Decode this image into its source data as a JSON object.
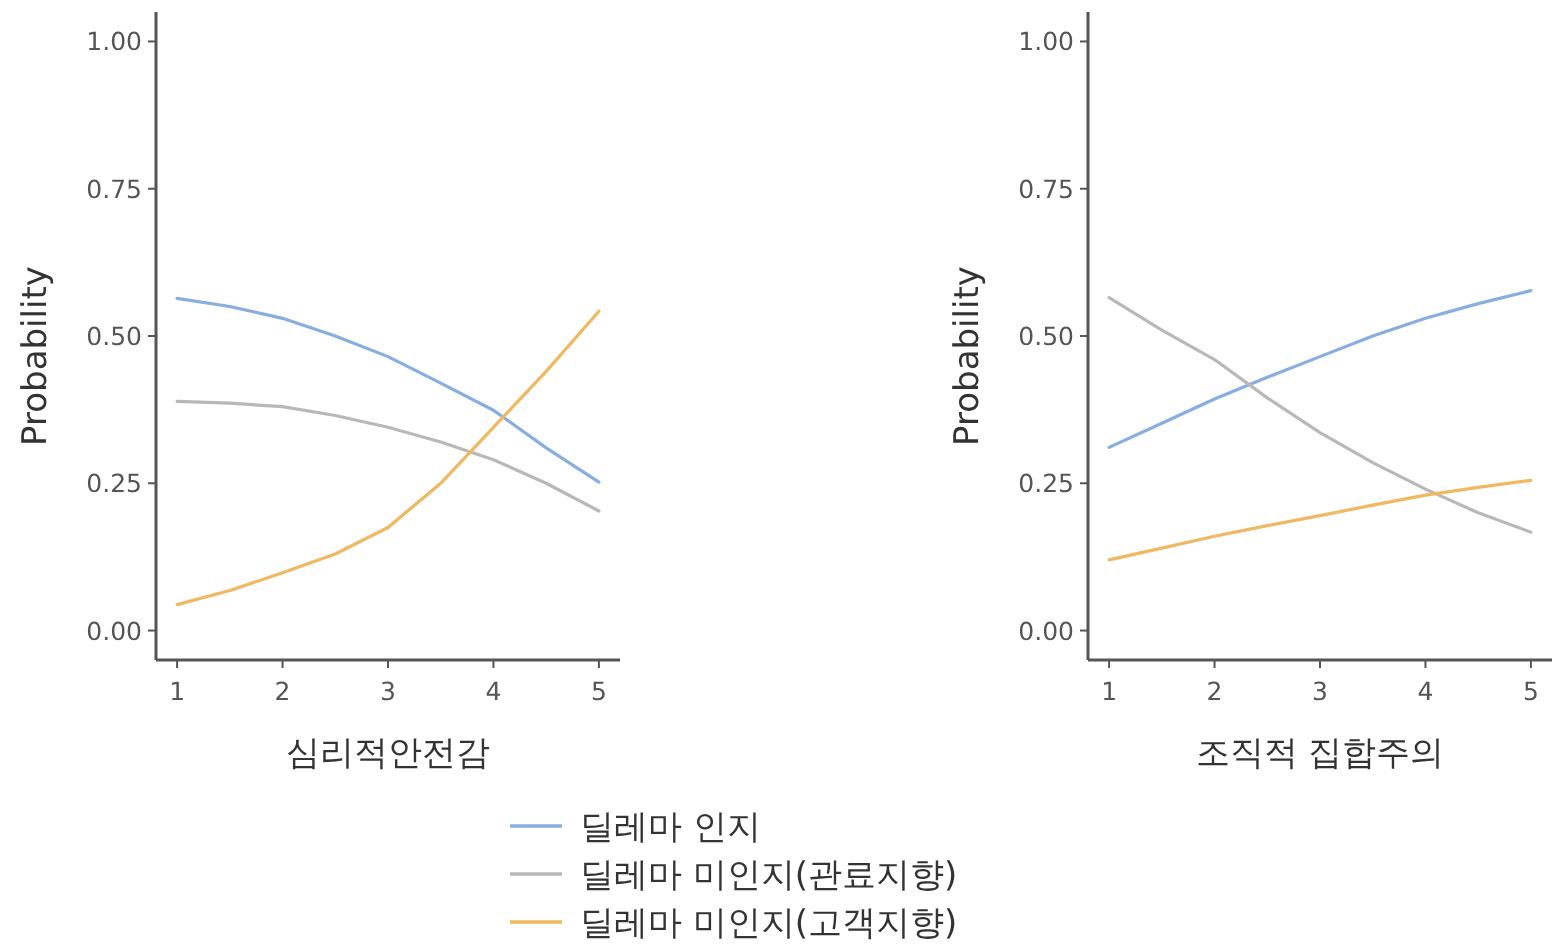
{
  "chart_data": [
    {
      "type": "line",
      "xlabel": "심리적안전감",
      "ylabel": "Probability",
      "xlim": [
        0.8,
        5.2
      ],
      "ylim": [
        -0.05,
        1.05
      ],
      "xticks": [
        1,
        2,
        3,
        4,
        5
      ],
      "yticks": [
        {
          "value": 0,
          "label": "0.00"
        },
        {
          "value": 0.25,
          "label": "0.25"
        },
        {
          "value": 0.5,
          "label": "0.50"
        },
        {
          "value": 0.75,
          "label": "0.75"
        },
        {
          "value": 1,
          "label": "1.00"
        }
      ],
      "grid": false,
      "legend": "bottom",
      "marker": "none",
      "line_style": "solid",
      "x": [
        1,
        1.5,
        2,
        2.5,
        3,
        3.5,
        4,
        4.5,
        5
      ],
      "series": [
        {
          "name": "딜레마 인지",
          "color": "#88aee0",
          "values": [
            0.564,
            0.55,
            0.53,
            0.5,
            0.465,
            0.42,
            0.374,
            0.31,
            0.252
          ]
        },
        {
          "name": "딜레마 미인지(관료지향)",
          "color": "#b8b8b8",
          "values": [
            0.389,
            0.386,
            0.38,
            0.365,
            0.345,
            0.32,
            0.29,
            0.25,
            0.203
          ]
        },
        {
          "name": "딜레마 미인지(고객지향)",
          "color": "#f0b860",
          "values": [
            0.044,
            0.068,
            0.098,
            0.13,
            0.175,
            0.25,
            0.345,
            0.44,
            0.542
          ]
        }
      ]
    },
    {
      "type": "line",
      "xlabel": "조직적 집합주의",
      "ylabel": "Probability",
      "xlim": [
        0.8,
        5.2
      ],
      "ylim": [
        -0.05,
        1.05
      ],
      "xticks": [
        1,
        2,
        3,
        4,
        5
      ],
      "yticks": [
        {
          "value": 0,
          "label": "0.00"
        },
        {
          "value": 0.25,
          "label": "0.25"
        },
        {
          "value": 0.5,
          "label": "0.50"
        },
        {
          "value": 0.75,
          "label": "0.75"
        },
        {
          "value": 1,
          "label": "1.00"
        }
      ],
      "grid": false,
      "legend": "bottom",
      "marker": "none",
      "line_style": "solid",
      "x": [
        1,
        1.5,
        2,
        2.5,
        3,
        3.5,
        4,
        4.5,
        5
      ],
      "series": [
        {
          "name": "딜레마 인지",
          "color": "#88aee0",
          "values": [
            0.311,
            0.352,
            0.393,
            0.43,
            0.465,
            0.5,
            0.53,
            0.555,
            0.577
          ]
        },
        {
          "name": "딜레마 미인지(관료지향)",
          "color": "#b8b8b8",
          "values": [
            0.565,
            0.51,
            0.46,
            0.395,
            0.336,
            0.285,
            0.24,
            0.2,
            0.167
          ]
        },
        {
          "name": "딜레마 미인지(고객지향)",
          "color": "#f0b860",
          "values": [
            0.12,
            0.14,
            0.16,
            0.178,
            0.195,
            0.213,
            0.23,
            0.243,
            0.255
          ]
        }
      ]
    }
  ]
}
